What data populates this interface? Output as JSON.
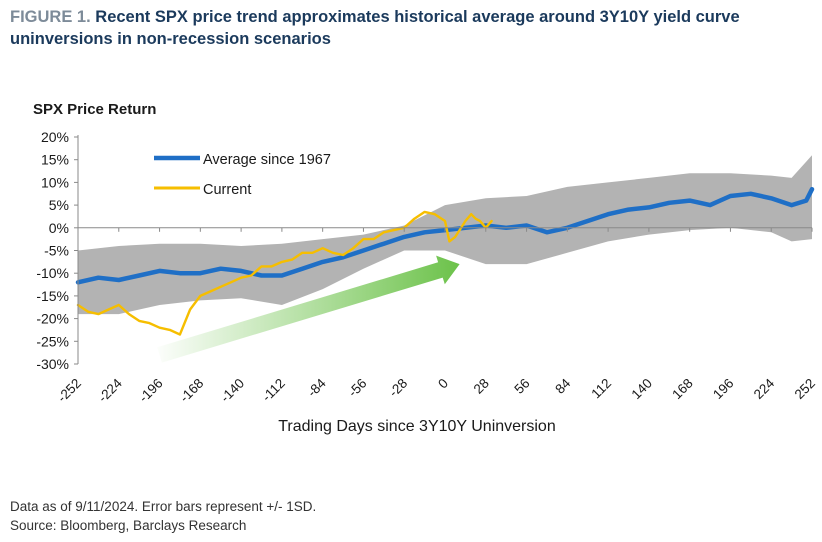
{
  "figure": {
    "prefix": "FIGURE 1.",
    "title": "Recent SPX price trend approximates historical average around 3Y10Y yield curve uninversions in non-recession scenarios"
  },
  "notes": {
    "line1": "Data as of 9/11/2024. Error bars represent +/- 1SD.",
    "line2": "Source: Bloomberg, Barclays Research"
  },
  "chart_data": {
    "type": "line",
    "ylabel": "SPX Price Return",
    "xlabel": "Trading Days since 3Y10Y Uninversion",
    "xlim": [
      -252,
      252
    ],
    "ylim": [
      -30,
      20
    ],
    "x_ticks": [
      -252,
      -224,
      -196,
      -168,
      -140,
      -112,
      -84,
      -56,
      -28,
      0,
      28,
      56,
      84,
      112,
      140,
      168,
      196,
      224,
      252
    ],
    "y_ticks": [
      {
        "value": 20,
        "label": "20%"
      },
      {
        "value": 15,
        "label": "15%"
      },
      {
        "value": 10,
        "label": "10%"
      },
      {
        "value": 5,
        "label": "5%"
      },
      {
        "value": 0,
        "label": "0%"
      },
      {
        "value": -5,
        "label": "-5%"
      },
      {
        "value": -10,
        "label": "-10%"
      },
      {
        "value": -15,
        "label": "-15%"
      },
      {
        "value": -20,
        "label": "-20%"
      },
      {
        "value": -25,
        "label": "-25%"
      },
      {
        "value": -30,
        "label": "-30%"
      }
    ],
    "grid": false,
    "legend_position": "top-left",
    "series": [
      {
        "name": "Average since 1967",
        "color": "#1f6fc6",
        "x": [
          -252,
          -238,
          -224,
          -210,
          -196,
          -182,
          -168,
          -154,
          -140,
          -126,
          -112,
          -98,
          -84,
          -70,
          -56,
          -42,
          -28,
          -14,
          0,
          14,
          28,
          42,
          56,
          70,
          84,
          98,
          112,
          126,
          140,
          154,
          168,
          182,
          196,
          210,
          224,
          238,
          248,
          252
        ],
        "y": [
          -12,
          -11,
          -11.5,
          -10.5,
          -9.5,
          -10,
          -10,
          -9,
          -9.5,
          -10.5,
          -10.5,
          -9,
          -7.5,
          -6.5,
          -5,
          -3.5,
          -2,
          -1,
          -0.5,
          0,
          0.5,
          0,
          0.5,
          -1,
          0,
          1.5,
          3,
          4,
          4.5,
          5.5,
          6,
          5,
          7,
          7.5,
          6.5,
          5,
          6,
          8.5
        ]
      },
      {
        "name": "Current",
        "color": "#f6be00",
        "x": [
          -252,
          -245,
          -238,
          -231,
          -224,
          -217,
          -210,
          -203,
          -196,
          -189,
          -182,
          -175,
          -168,
          -161,
          -154,
          -147,
          -140,
          -133,
          -126,
          -119,
          -112,
          -105,
          -98,
          -91,
          -84,
          -77,
          -70,
          -63,
          -56,
          -49,
          -42,
          -35,
          -28,
          -21,
          -14,
          -7,
          0,
          3,
          7,
          10,
          14,
          18,
          21,
          24,
          28,
          32
        ],
        "y": [
          -17,
          -18.5,
          -19,
          -18,
          -17,
          -19,
          -20.5,
          -21,
          -22,
          -22.5,
          -23.5,
          -18,
          -15,
          -14,
          -13,
          -12,
          -11,
          -10.5,
          -8.5,
          -8.5,
          -7.5,
          -7,
          -5.5,
          -5.5,
          -4.5,
          -5.5,
          -6,
          -4.5,
          -2.5,
          -2.5,
          -1,
          -0.5,
          0,
          2,
          3.5,
          3,
          1.5,
          -3,
          -2,
          -0.5,
          1.5,
          3,
          2,
          1.5,
          0,
          1.5
        ]
      }
    ],
    "band": {
      "description": "+/- 1SD",
      "color": "#b3b3b3",
      "x": [
        -252,
        -224,
        -196,
        -168,
        -140,
        -112,
        -84,
        -56,
        -28,
        0,
        28,
        56,
        84,
        112,
        140,
        168,
        196,
        224,
        238,
        252
      ],
      "upper": [
        -5,
        -4,
        -3.5,
        -3.5,
        -4,
        -3.5,
        -2.5,
        -1.5,
        0.5,
        5,
        6.5,
        7,
        9,
        10,
        11,
        12,
        12,
        11.5,
        11,
        16
      ],
      "lower": [
        -19,
        -19,
        -17,
        -16,
        -15.5,
        -17,
        -13.5,
        -9,
        -5,
        -5,
        -8,
        -8,
        -5.5,
        -3,
        -1.5,
        -0.5,
        0,
        -1,
        -3,
        -2.5
      ]
    },
    "annotation": {
      "type": "trend-arrow",
      "color": "#6cc24a",
      "from": {
        "x": -196,
        "y": -28
      },
      "to": {
        "x": 10,
        "y": -8
      }
    }
  }
}
